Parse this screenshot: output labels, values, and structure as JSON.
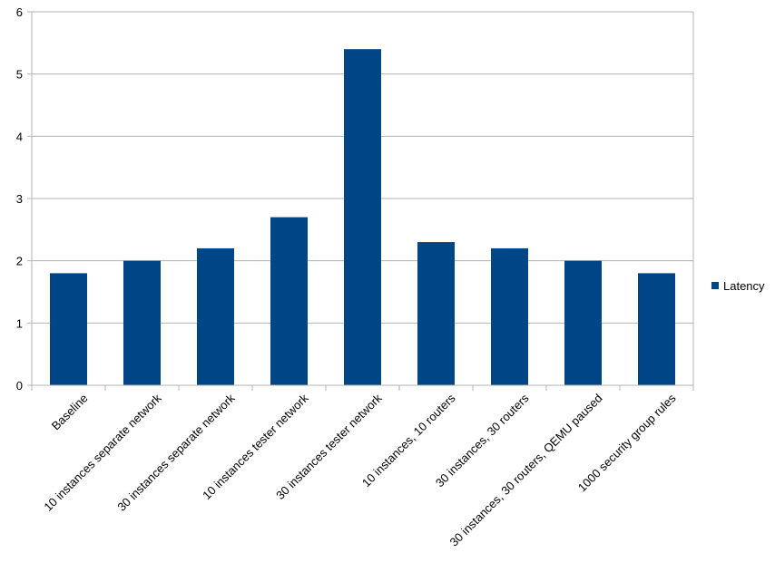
{
  "chart_data": {
    "type": "bar",
    "title": "",
    "xlabel": "",
    "ylabel": "",
    "ylim": [
      0,
      6
    ],
    "yticks": [
      0,
      1,
      2,
      3,
      4,
      5,
      6
    ],
    "grid": true,
    "legend_position": "right",
    "categories": [
      "Baseline",
      "10 instances separate network",
      "30 instances separate network",
      "10 instances tester network",
      "30 instances tester network",
      "10 instances, 10 routers",
      "30 instances, 30 routers",
      "30 instances, 30 routers, QEMU paused",
      "1000 security group rules"
    ],
    "series": [
      {
        "name": "Latency",
        "color": "#004586",
        "values": [
          1.8,
          2.0,
          2.2,
          2.7,
          5.4,
          2.3,
          2.2,
          2.0,
          1.8
        ]
      }
    ]
  }
}
